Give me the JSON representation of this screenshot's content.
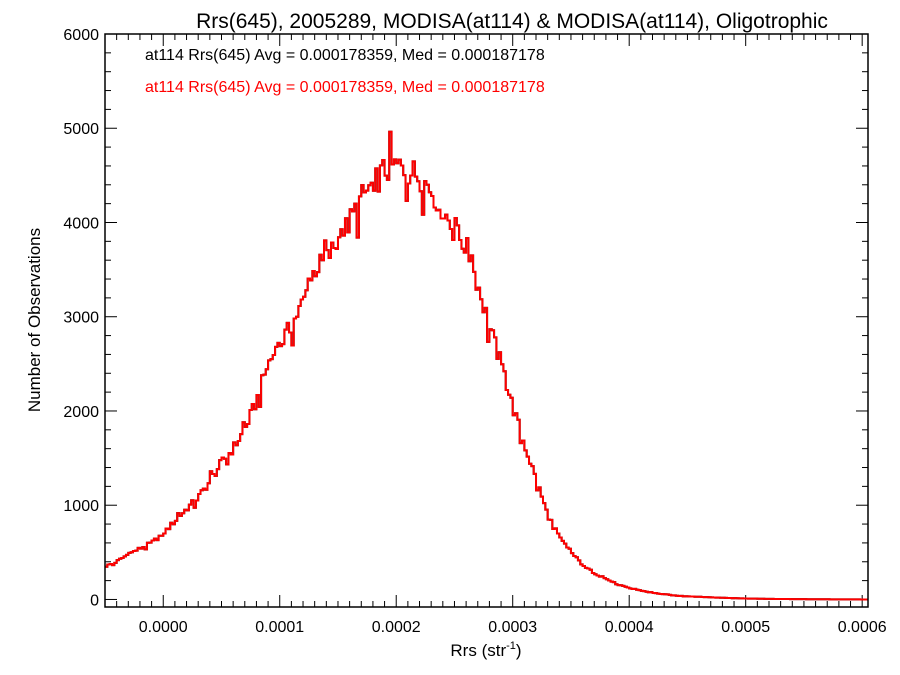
{
  "chart_data": {
    "type": "histogram-step",
    "title": "Rrs(645), 2005289, MODISA(at114) & MODISA(at114), Oligotrophic",
    "xlabel": "Rrs (str",
    "xlabel_sup": "-1",
    "xlabel_suffix": ")",
    "ylabel": "Number of Observations",
    "xlim": [
      -5e-05,
      0.000605
    ],
    "ylim": [
      -80,
      6000
    ],
    "xticks": [
      0.0,
      0.0001,
      0.0002,
      0.0003,
      0.0004,
      0.0005,
      0.0006
    ],
    "xtick_labels": [
      "0.0000",
      "0.0001",
      "0.0002",
      "0.0003",
      "0.0004",
      "0.0005",
      "0.0006"
    ],
    "yticks": [
      0,
      1000,
      2000,
      3000,
      4000,
      5000,
      6000
    ],
    "ytick_labels": [
      "0",
      "1000",
      "2000",
      "3000",
      "4000",
      "5000",
      "6000"
    ],
    "bin_width": 2e-06,
    "legend": [
      {
        "text": "at114 Rrs(645) Avg = 0.000178359, Med = 0.000187178",
        "color": "#000000"
      },
      {
        "text": "at114 Rrs(645) Avg = 0.000178359, Med = 0.000187178",
        "color": "#ff0000"
      }
    ],
    "series": [
      {
        "color": "#000000",
        "x": [
          -5e-05,
          -4e-05,
          -3e-05,
          -2e-05,
          -1e-05,
          0.0,
          1e-05,
          2e-05,
          3e-05,
          4e-05,
          5e-05,
          6e-05,
          7e-05,
          8e-05,
          9e-05,
          0.0001,
          0.00011,
          0.00012,
          0.00013,
          0.00014,
          0.00015,
          0.00016,
          0.00017,
          0.00018,
          0.00019,
          0.0002,
          0.00021,
          0.00022,
          0.00023,
          0.00024,
          0.00025,
          0.00026,
          0.00027,
          0.00028,
          0.00029,
          0.0003,
          0.00031,
          0.00032,
          0.00033,
          0.00034,
          0.00035,
          0.00036,
          0.00037,
          0.00038,
          0.00039,
          0.0004,
          0.00042,
          0.00044,
          0.00046,
          0.00048,
          0.0005,
          0.00052,
          0.00055,
          0.00058,
          0.000605
        ],
        "y": [
          350,
          400,
          480,
          540,
          600,
          700,
          830,
          960,
          1080,
          1250,
          1450,
          1600,
          1800,
          2100,
          2500,
          2700,
          2900,
          3150,
          3500,
          3600,
          3800,
          4000,
          4250,
          4400,
          4550,
          4600,
          4550,
          4500,
          4350,
          4150,
          3900,
          3750,
          3350,
          2900,
          2500,
          2050,
          1650,
          1280,
          900,
          660,
          500,
          370,
          280,
          220,
          160,
          120,
          70,
          40,
          28,
          18,
          10,
          6,
          3,
          1,
          0
        ]
      },
      {
        "color": "#ff0000",
        "x": [
          -5e-05,
          -4e-05,
          -3e-05,
          -2e-05,
          -1e-05,
          0.0,
          1e-05,
          2e-05,
          3e-05,
          4e-05,
          5e-05,
          6e-05,
          7e-05,
          8e-05,
          9e-05,
          0.0001,
          0.00011,
          0.00012,
          0.00013,
          0.00014,
          0.00015,
          0.00016,
          0.00017,
          0.00018,
          0.00019,
          0.0002,
          0.00021,
          0.00022,
          0.00023,
          0.00024,
          0.00025,
          0.00026,
          0.00027,
          0.00028,
          0.00029,
          0.0003,
          0.00031,
          0.00032,
          0.00033,
          0.00034,
          0.00035,
          0.00036,
          0.00037,
          0.00038,
          0.00039,
          0.0004,
          0.00042,
          0.00044,
          0.00046,
          0.00048,
          0.0005,
          0.00052,
          0.00055,
          0.00058,
          0.000605
        ],
        "y": [
          350,
          400,
          480,
          540,
          600,
          700,
          830,
          960,
          1080,
          1250,
          1450,
          1600,
          1800,
          2100,
          2500,
          2700,
          2900,
          3150,
          3500,
          3600,
          3800,
          4000,
          4250,
          4400,
          4550,
          4600,
          4550,
          4500,
          4350,
          4150,
          3900,
          3750,
          3350,
          2900,
          2500,
          2050,
          1650,
          1280,
          900,
          660,
          500,
          370,
          280,
          220,
          160,
          120,
          70,
          40,
          28,
          18,
          10,
          6,
          3,
          1,
          0
        ]
      }
    ]
  }
}
